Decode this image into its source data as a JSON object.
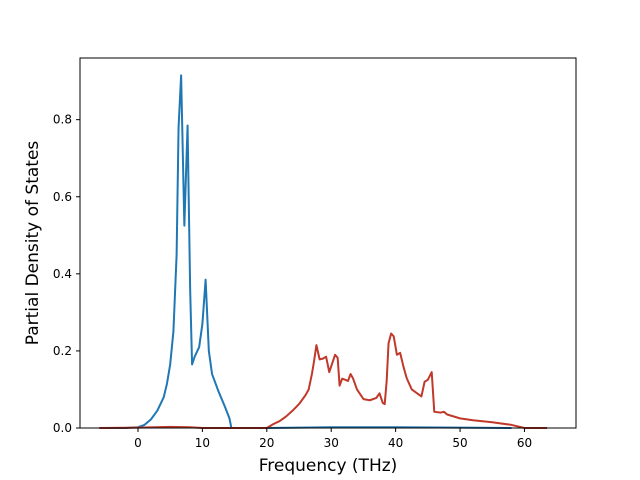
{
  "chart_data": {
    "type": "line",
    "title": "",
    "xlabel": "Frequency (THz)",
    "ylabel": "Partial Density of States",
    "xlim": [
      -9,
      68
    ],
    "ylim": [
      0.0,
      0.96
    ],
    "xticks": [
      0,
      10,
      20,
      30,
      40,
      50,
      60
    ],
    "yticks": [
      0.0,
      0.2,
      0.4,
      0.6,
      0.8
    ],
    "xtick_labels": [
      "0",
      "10",
      "20",
      "30",
      "40",
      "50",
      "60"
    ],
    "ytick_labels": [
      "0.0",
      "0.2",
      "0.4",
      "0.6",
      "0.8"
    ],
    "grid": false,
    "legend": "none",
    "series": [
      {
        "color": "#1f77b4",
        "x": [
          -6,
          -2,
          0,
          1,
          2,
          3,
          4,
          4.5,
          5,
          5.5,
          6,
          6.3,
          6.7,
          7.2,
          7.7,
          8.1,
          8.4,
          8.8,
          9.5,
          10,
          10.5,
          11,
          11.5,
          12.5,
          13.5,
          14.2,
          14.5,
          20,
          30,
          40,
          50,
          58
        ],
        "y": [
          0,
          0,
          0.002,
          0.008,
          0.022,
          0.045,
          0.08,
          0.115,
          0.165,
          0.25,
          0.45,
          0.78,
          0.915,
          0.525,
          0.785,
          0.36,
          0.165,
          0.185,
          0.21,
          0.27,
          0.385,
          0.2,
          0.14,
          0.095,
          0.055,
          0.025,
          0.0,
          0.0,
          0.002,
          0.002,
          0.001,
          0.0
        ]
      },
      {
        "color": "#c0392b",
        "x": [
          -6,
          0,
          5,
          8,
          10,
          15,
          20,
          21,
          22,
          23,
          24,
          25,
          26,
          26.5,
          27,
          27.3,
          27.7,
          28.2,
          28.7,
          29.2,
          29.7,
          30.2,
          30.6,
          31,
          31.3,
          31.7,
          32.2,
          32.6,
          33,
          33.4,
          34,
          35,
          36,
          37,
          37.5,
          38,
          38.3,
          38.6,
          38.9,
          39.3,
          39.7,
          40.2,
          40.7,
          41.2,
          41.7,
          42.5,
          43.5,
          44,
          44.5,
          45,
          45.3,
          45.6,
          46,
          47,
          47.5,
          48,
          50,
          52,
          55,
          58,
          60,
          63.5
        ],
        "y": [
          0,
          0.001,
          0.003,
          0.002,
          0.0,
          0.0,
          0.0,
          0.01,
          0.018,
          0.03,
          0.045,
          0.062,
          0.085,
          0.1,
          0.14,
          0.17,
          0.215,
          0.178,
          0.18,
          0.185,
          0.145,
          0.17,
          0.19,
          0.182,
          0.11,
          0.128,
          0.125,
          0.122,
          0.14,
          0.128,
          0.1,
          0.075,
          0.072,
          0.078,
          0.09,
          0.065,
          0.062,
          0.12,
          0.22,
          0.245,
          0.238,
          0.19,
          0.195,
          0.16,
          0.13,
          0.1,
          0.088,
          0.082,
          0.12,
          0.125,
          0.135,
          0.145,
          0.042,
          0.04,
          0.042,
          0.035,
          0.025,
          0.02,
          0.015,
          0.008,
          0.0,
          0.0
        ]
      }
    ]
  }
}
